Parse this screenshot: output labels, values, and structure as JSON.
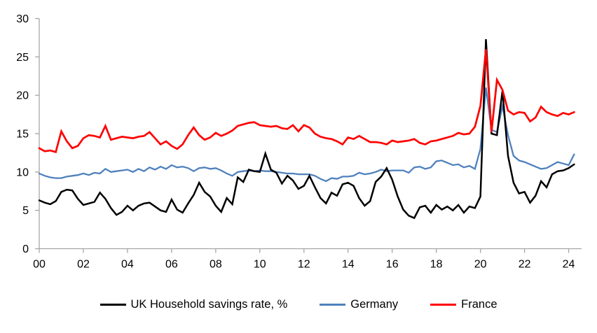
{
  "chart_data": {
    "type": "line",
    "title": "",
    "xlabel": "",
    "ylabel": "",
    "x_start_year": 2000,
    "x_step_years": 0.25,
    "x_end_year": 2024.25,
    "xlim": [
      2000,
      2024.3
    ],
    "ylim": [
      0,
      30
    ],
    "y_ticks": [
      0,
      5,
      10,
      15,
      20,
      25,
      30
    ],
    "x_tick_years": [
      2000,
      2002,
      2004,
      2006,
      2008,
      2010,
      2012,
      2014,
      2016,
      2018,
      2020,
      2022,
      2024
    ],
    "x_tick_labels": [
      "00",
      "02",
      "04",
      "06",
      "08",
      "10",
      "12",
      "14",
      "16",
      "18",
      "20",
      "22",
      "24"
    ],
    "grid": false,
    "legend_position": "bottom",
    "axis_color": "#a6a6a6",
    "tick_label_color": "#000000",
    "series": [
      {
        "name": "UK Household savings rate, %",
        "color": "#000000",
        "values": [
          6.3,
          6.0,
          5.8,
          6.2,
          7.4,
          7.7,
          7.6,
          6.5,
          5.7,
          5.9,
          6.1,
          7.3,
          6.5,
          5.3,
          4.4,
          4.8,
          5.6,
          5.0,
          5.6,
          5.9,
          6.0,
          5.5,
          5.0,
          4.8,
          6.4,
          5.1,
          4.7,
          5.9,
          7.0,
          8.6,
          7.4,
          6.8,
          5.6,
          4.8,
          6.6,
          5.8,
          9.3,
          8.7,
          10.3,
          10.1,
          10.0,
          12.4,
          10.3,
          9.9,
          8.5,
          9.5,
          8.9,
          7.8,
          8.2,
          9.5,
          8.0,
          6.6,
          5.9,
          7.3,
          6.9,
          8.4,
          8.6,
          8.2,
          6.6,
          5.6,
          6.2,
          8.7,
          9.4,
          10.5,
          9.0,
          6.8,
          5.1,
          4.3,
          4.0,
          5.4,
          5.6,
          4.7,
          5.7,
          5.1,
          5.5,
          5.0,
          5.7,
          4.7,
          5.5,
          5.3,
          6.8,
          27.3,
          15.0,
          14.8,
          20.6,
          12.1,
          8.6,
          7.2,
          7.4,
          6.0,
          6.9,
          8.8,
          8.0,
          9.7,
          10.1,
          10.2,
          10.5,
          11.0
        ]
      },
      {
        "name": "Germany",
        "color": "#4f81bd",
        "values": [
          9.8,
          9.5,
          9.3,
          9.2,
          9.2,
          9.4,
          9.5,
          9.6,
          9.8,
          9.6,
          9.9,
          9.8,
          10.4,
          10.0,
          10.1,
          10.2,
          10.3,
          10.0,
          10.4,
          10.1,
          10.6,
          10.3,
          10.7,
          10.4,
          10.9,
          10.6,
          10.7,
          10.5,
          10.1,
          10.5,
          10.6,
          10.4,
          10.5,
          10.2,
          9.8,
          9.5,
          10.0,
          10.1,
          10.2,
          10.1,
          10.2,
          10.1,
          10.1,
          10.0,
          9.9,
          9.8,
          9.8,
          9.7,
          9.7,
          9.7,
          9.5,
          9.1,
          8.8,
          9.2,
          9.1,
          9.4,
          9.4,
          9.5,
          9.9,
          9.7,
          9.8,
          10.0,
          10.3,
          10.1,
          10.2,
          10.2,
          10.2,
          9.9,
          10.6,
          10.7,
          10.4,
          10.6,
          11.4,
          11.5,
          11.2,
          10.9,
          11.0,
          10.6,
          10.8,
          10.4,
          13.0,
          21.0,
          15.5,
          15.2,
          18.6,
          14.8,
          12.1,
          11.5,
          11.3,
          11.0,
          10.7,
          10.4,
          10.5,
          10.9,
          11.3,
          11.1,
          10.9,
          12.3
        ]
      },
      {
        "name": "France",
        "color": "#ff0000",
        "values": [
          13.1,
          12.7,
          12.8,
          12.6,
          15.3,
          14.0,
          13.1,
          13.4,
          14.4,
          14.8,
          14.7,
          14.5,
          16.0,
          14.2,
          14.4,
          14.6,
          14.5,
          14.4,
          14.6,
          14.7,
          15.2,
          14.4,
          13.6,
          14.0,
          13.4,
          13.0,
          13.6,
          14.8,
          15.8,
          14.8,
          14.2,
          14.5,
          15.1,
          14.7,
          15.0,
          15.4,
          16.0,
          16.2,
          16.4,
          16.5,
          16.1,
          16.0,
          15.9,
          16.0,
          15.7,
          15.6,
          16.1,
          15.3,
          16.1,
          15.8,
          15.0,
          14.6,
          14.4,
          14.3,
          14.0,
          13.6,
          14.5,
          14.3,
          14.7,
          14.3,
          13.9,
          13.9,
          13.8,
          13.6,
          14.1,
          13.9,
          14.0,
          14.1,
          14.3,
          13.8,
          13.6,
          14.0,
          14.1,
          14.3,
          14.5,
          14.7,
          15.1,
          14.9,
          15.0,
          15.9,
          18.6,
          26.0,
          15.2,
          22.0,
          20.7,
          18.0,
          17.5,
          17.8,
          17.7,
          16.6,
          17.1,
          18.5,
          17.8,
          17.5,
          17.3,
          17.7,
          17.5,
          17.8
        ]
      }
    ]
  },
  "legend": {
    "items": [
      {
        "label": "UK Household savings rate, %",
        "color": "#000000"
      },
      {
        "label": "Germany",
        "color": "#4f81bd"
      },
      {
        "label": "France",
        "color": "#ff0000"
      }
    ]
  }
}
